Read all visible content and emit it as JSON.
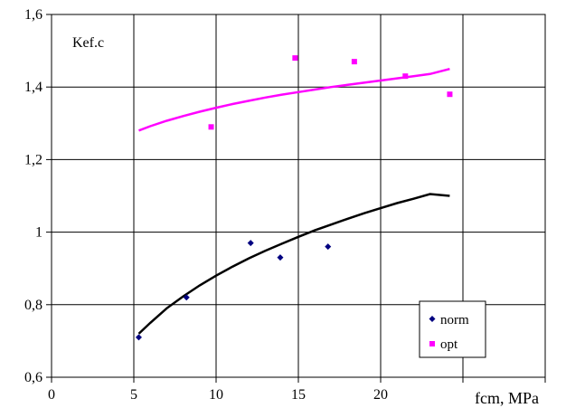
{
  "chart_data": {
    "type": "scatter",
    "title": "",
    "xlabel": "fcm, MPa",
    "ylabel": "Kef.c",
    "xlim": [
      0,
      30
    ],
    "ylim": [
      0.6,
      1.6
    ],
    "x_ticks": [
      {
        "value": 0,
        "label": "0"
      },
      {
        "value": 5,
        "label": "5"
      },
      {
        "value": 10,
        "label": "10"
      },
      {
        "value": 15,
        "label": "15"
      },
      {
        "value": 20,
        "label": "20"
      },
      {
        "value": 25,
        "label": ""
      },
      {
        "value": 30,
        "label": ""
      }
    ],
    "y_ticks": [
      {
        "value": 0.6,
        "label": "0,6"
      },
      {
        "value": 0.8,
        "label": "0,8"
      },
      {
        "value": 1.0,
        "label": "1"
      },
      {
        "value": 1.2,
        "label": "1,2"
      },
      {
        "value": 1.4,
        "label": "1,4"
      },
      {
        "value": 1.6,
        "label": "1,6"
      }
    ],
    "grid": true,
    "legend_position": "bottom-right",
    "series": [
      {
        "name": "norm",
        "marker": "diamond",
        "color": "#000080",
        "x": [
          5.3,
          8.2,
          12.1,
          13.9,
          16.8
        ],
        "y": [
          0.71,
          0.82,
          0.97,
          0.93,
          0.96
        ],
        "trend": {
          "color": "#000000",
          "x": [
            5.3,
            6,
            7,
            8,
            9,
            10,
            11,
            12,
            13,
            14,
            15,
            16,
            17,
            18,
            19,
            20,
            21,
            22,
            23,
            24.2
          ],
          "y": [
            0.72,
            0.75,
            0.79,
            0.823,
            0.853,
            0.88,
            0.905,
            0.928,
            0.949,
            0.968,
            0.987,
            1.005,
            1.021,
            1.037,
            1.052,
            1.066,
            1.08,
            1.092,
            1.105,
            1.1
          ]
        }
      },
      {
        "name": "opt",
        "marker": "square",
        "color": "#ff00ff",
        "x": [
          9.7,
          14.8,
          18.4,
          21.5,
          24.2
        ],
        "y": [
          1.29,
          1.48,
          1.47,
          1.43,
          1.38
        ],
        "trend": {
          "color": "#ff00ff",
          "x": [
            5.3,
            6,
            7,
            8,
            9,
            10,
            11,
            12,
            13,
            14,
            15,
            16,
            17,
            18,
            19,
            20,
            21,
            22,
            23,
            24.2
          ],
          "y": [
            1.28,
            1.292,
            1.307,
            1.32,
            1.332,
            1.343,
            1.353,
            1.362,
            1.371,
            1.379,
            1.386,
            1.393,
            1.4,
            1.406,
            1.412,
            1.418,
            1.424,
            1.43,
            1.436,
            1.45
          ]
        }
      }
    ]
  }
}
